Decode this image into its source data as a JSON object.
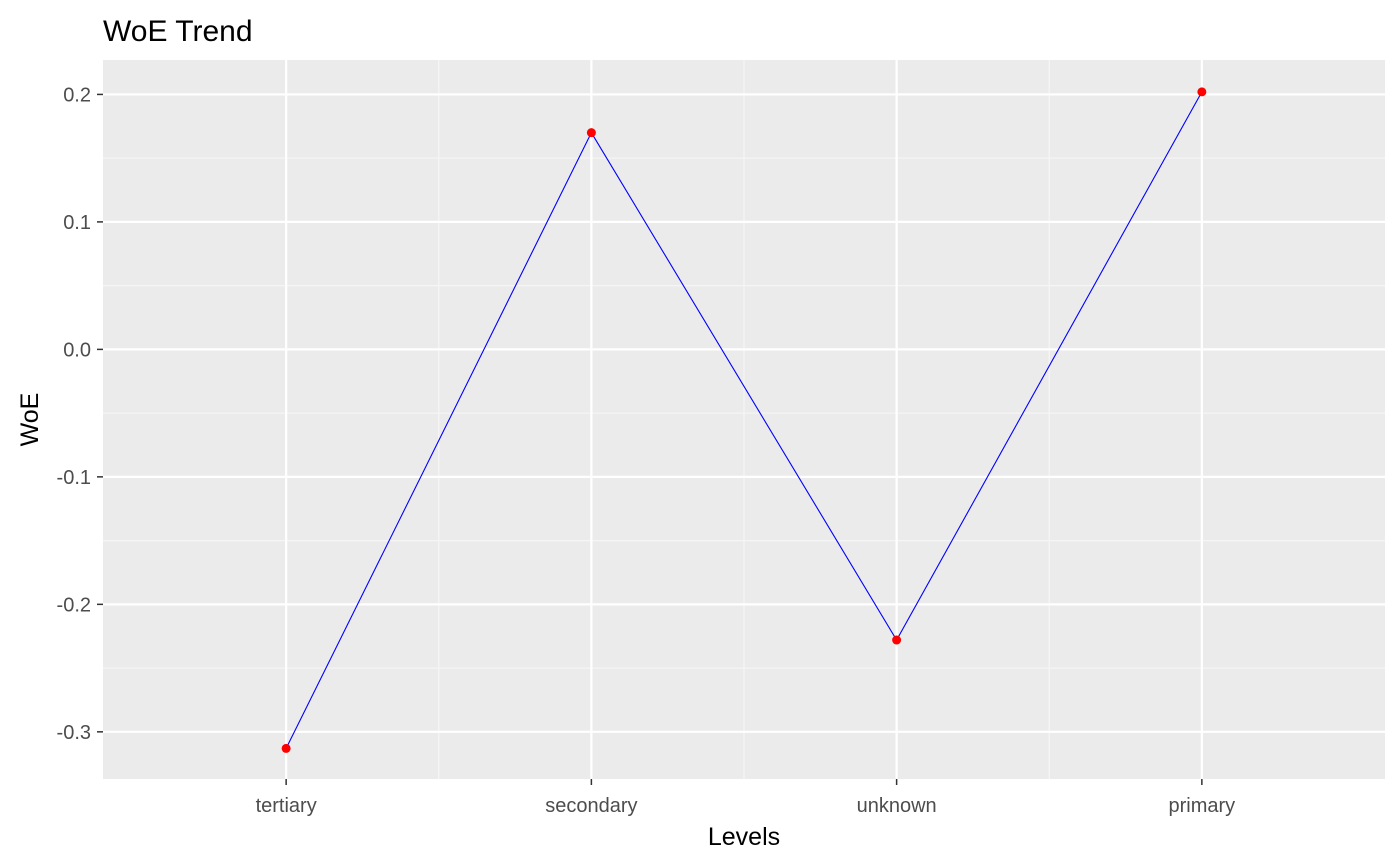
{
  "chart_data": {
    "type": "line",
    "title": "WoE Trend",
    "xlabel": "Levels",
    "ylabel": "WoE",
    "categories": [
      "tertiary",
      "secondary",
      "unknown",
      "primary"
    ],
    "series": [
      {
        "values": [
          -0.313,
          0.17,
          -0.228,
          0.202
        ]
      }
    ],
    "ylim": [
      -0.337,
      0.227
    ],
    "yticks": [
      -0.3,
      -0.2,
      -0.1,
      0.0,
      0.1,
      0.2
    ],
    "ytick_labels": [
      "-0.3",
      "-0.2",
      "-0.1",
      "0.0",
      "0.1",
      "0.2"
    ],
    "grid": true,
    "colors": {
      "panel_background": "#ebebeb",
      "grid_major": "#ffffff",
      "grid_minor": "#f5f5f5",
      "line": "#0000ff",
      "point": "#ff0000",
      "tick_mark": "#333333"
    }
  }
}
